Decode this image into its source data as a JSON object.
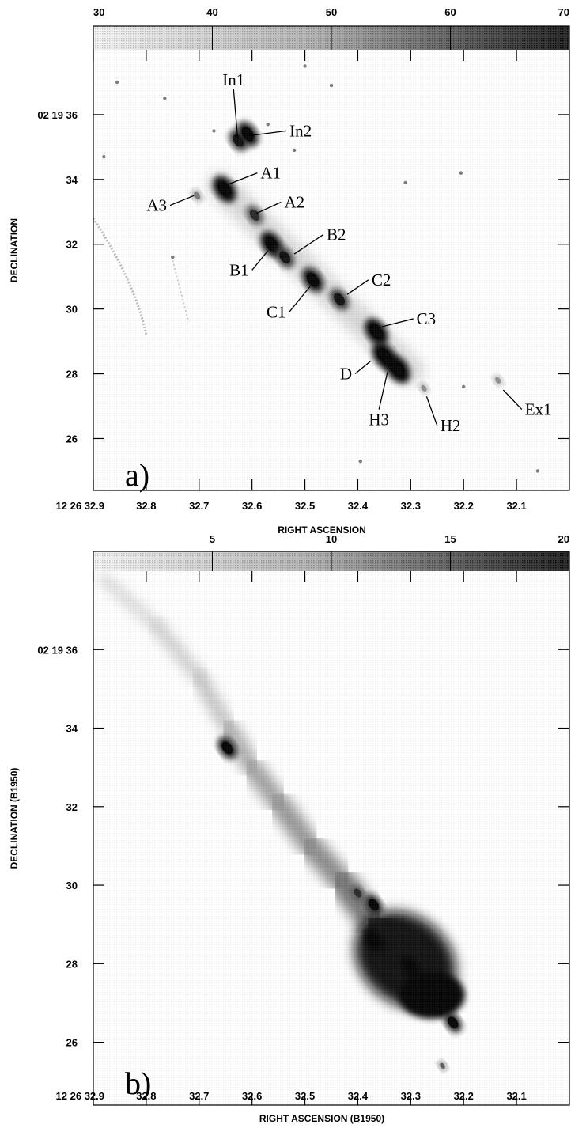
{
  "chart_data": [
    {
      "type": "heatmap",
      "panel_label": "a)",
      "colorbar": {
        "ticks": [
          "30",
          "40",
          "50",
          "60",
          "70"
        ],
        "range": [
          30,
          70
        ]
      },
      "xlabel": "RIGHT ASCENSION",
      "ylabel": "DECLINATION",
      "xlim": [
        32.9,
        32.0
      ],
      "ylim": [
        24.4,
        38.0
      ],
      "x_ticks": [
        {
          "v": 32.9,
          "label": "12 26 32.9"
        },
        {
          "v": 32.8,
          "label": "32.8"
        },
        {
          "v": 32.7,
          "label": "32.7"
        },
        {
          "v": 32.6,
          "label": "32.6"
        },
        {
          "v": 32.5,
          "label": "32.5"
        },
        {
          "v": 32.4,
          "label": "32.4"
        },
        {
          "v": 32.3,
          "label": "32.3"
        },
        {
          "v": 32.2,
          "label": "32.2"
        },
        {
          "v": 32.1,
          "label": "32.1"
        }
      ],
      "y_ticks": [
        {
          "v": 36,
          "label": "02 19 36"
        },
        {
          "v": 34,
          "label": "34"
        },
        {
          "v": 32,
          "label": "32"
        },
        {
          "v": 30,
          "label": "30"
        },
        {
          "v": 28,
          "label": "28"
        },
        {
          "v": 26,
          "label": "26"
        }
      ],
      "knots": [
        {
          "name": "In1",
          "ra": 32.626,
          "dec": 35.2,
          "intensity": 62,
          "lx": 32.627,
          "ly": 35.25,
          "tx": 32.635,
          "ty": 36.8
        },
        {
          "name": "In2",
          "ra": 32.608,
          "dec": 35.4,
          "intensity": 68,
          "lx": 32.605,
          "ly": 35.35,
          "tx": 32.535,
          "ty": 35.5
        },
        {
          "name": "A1",
          "ra": 32.652,
          "dec": 33.7,
          "intensity": 72,
          "lx": 32.645,
          "ly": 33.85,
          "tx": 32.59,
          "ty": 34.2
        },
        {
          "name": "A2",
          "ra": 32.595,
          "dec": 32.9,
          "intensity": 58,
          "lx": 32.592,
          "ly": 32.95,
          "tx": 32.545,
          "ty": 33.3
        },
        {
          "name": "A3",
          "ra": 32.704,
          "dec": 33.5,
          "intensity": 45,
          "lx": 32.71,
          "ly": 33.5,
          "tx": 32.755,
          "ty": 33.2
        },
        {
          "name": "B1",
          "ra": 32.563,
          "dec": 32.0,
          "intensity": 70,
          "lx": 32.57,
          "ly": 31.8,
          "tx": 32.6,
          "ty": 31.2
        },
        {
          "name": "B2",
          "ra": 32.538,
          "dec": 31.6,
          "intensity": 62,
          "lx": 32.52,
          "ly": 31.7,
          "tx": 32.465,
          "ty": 32.3
        },
        {
          "name": "C1",
          "ra": 32.485,
          "dec": 30.9,
          "intensity": 68,
          "lx": 32.49,
          "ly": 30.7,
          "tx": 32.53,
          "ty": 29.9
        },
        {
          "name": "C2",
          "ra": 32.435,
          "dec": 30.3,
          "intensity": 62,
          "lx": 32.42,
          "ly": 30.45,
          "tx": 32.38,
          "ty": 30.9
        },
        {
          "name": "C3",
          "ra": 32.365,
          "dec": 29.3,
          "intensity": 72,
          "lx": 32.355,
          "ly": 29.45,
          "tx": 32.295,
          "ty": 29.7
        },
        {
          "name": "D",
          "ra": 32.35,
          "dec": 28.55,
          "intensity": 74,
          "lx": 32.375,
          "ly": 28.4,
          "tx": 32.405,
          "ty": 28.0
        },
        {
          "name": "H3",
          "ra": 32.325,
          "dec": 28.15,
          "intensity": 76,
          "lx": 32.344,
          "ly": 28.05,
          "tx": 32.36,
          "ty": 26.9
        },
        {
          "name": "H2",
          "ra": 32.275,
          "dec": 27.55,
          "intensity": 42,
          "lx": 32.27,
          "ly": 27.3,
          "tx": 32.25,
          "ty": 26.4
        },
        {
          "name": "Ex1",
          "ra": 32.135,
          "dec": 27.8,
          "intensity": 42,
          "lx": 32.125,
          "ly": 27.5,
          "tx": 32.09,
          "ty": 26.9
        }
      ],
      "spots": [
        [
          32.855,
          37.0
        ],
        [
          32.765,
          36.5
        ],
        [
          32.672,
          35.5
        ],
        [
          32.57,
          35.7
        ],
        [
          32.31,
          33.9
        ],
        [
          32.205,
          34.2
        ],
        [
          32.33,
          28.8
        ],
        [
          32.395,
          25.3
        ],
        [
          32.06,
          25.0
        ],
        [
          32.45,
          36.9
        ],
        [
          32.75,
          31.6
        ],
        [
          32.5,
          37.5
        ],
        [
          32.2,
          27.6
        ],
        [
          32.52,
          34.9
        ],
        [
          32.88,
          34.7
        ]
      ]
    },
    {
      "type": "heatmap",
      "panel_label": "b)",
      "colorbar": {
        "ticks": [
          "5",
          "10",
          "15",
          "20"
        ],
        "range": [
          0,
          20
        ]
      },
      "xlabel": "RIGHT ASCENSION (B1950)",
      "ylabel": "DECLINATION (B1950)",
      "xlim": [
        32.9,
        32.0
      ],
      "ylim": [
        24.4,
        38.0
      ],
      "x_ticks": [
        {
          "v": 32.9,
          "label": "12 26 32.9"
        },
        {
          "v": 32.8,
          "label": "32.8"
        },
        {
          "v": 32.7,
          "label": "32.7"
        },
        {
          "v": 32.6,
          "label": "32.6"
        },
        {
          "v": 32.5,
          "label": "32.5"
        },
        {
          "v": 32.4,
          "label": "32.4"
        },
        {
          "v": 32.3,
          "label": "32.3"
        },
        {
          "v": 32.2,
          "label": "32.2"
        },
        {
          "v": 32.1,
          "label": "32.1"
        }
      ],
      "y_ticks": [
        {
          "v": 36,
          "label": "02 19 36"
        },
        {
          "v": 34,
          "label": "34"
        },
        {
          "v": 32,
          "label": "32"
        },
        {
          "v": 30,
          "label": "30"
        },
        {
          "v": 28,
          "label": "28"
        },
        {
          "v": 26,
          "label": "26"
        }
      ],
      "spine": [
        [
          32.88,
          37.8,
          2
        ],
        [
          32.78,
          36.6,
          3
        ],
        [
          32.7,
          35.3,
          4
        ],
        [
          32.645,
          34.0,
          6
        ],
        [
          32.6,
          33.0,
          7
        ],
        [
          32.55,
          32.1,
          8
        ],
        [
          32.49,
          31.0,
          9
        ],
        [
          32.43,
          30.1,
          11
        ],
        [
          32.37,
          29.0,
          18
        ],
        [
          32.32,
          28.2,
          20
        ],
        [
          32.27,
          27.5,
          20
        ],
        [
          32.24,
          27.0,
          20
        ]
      ],
      "knots": [
        {
          "name": "",
          "ra": 32.647,
          "dec": 33.5,
          "intensity": 19
        },
        {
          "name": "",
          "ra": 32.37,
          "dec": 28.6,
          "intensity": 20
        },
        {
          "name": "",
          "ra": 32.3,
          "dec": 27.9,
          "intensity": 20
        },
        {
          "name": "",
          "ra": 32.245,
          "dec": 27.0,
          "intensity": 20
        },
        {
          "name": "",
          "ra": 32.37,
          "dec": 29.5,
          "intensity": 18
        },
        {
          "name": "",
          "ra": 32.4,
          "dec": 29.8,
          "intensity": 14
        },
        {
          "name": "",
          "ra": 32.22,
          "dec": 26.5,
          "intensity": 18
        },
        {
          "name": "",
          "ra": 32.24,
          "dec": 25.4,
          "intensity": 10
        }
      ]
    }
  ]
}
